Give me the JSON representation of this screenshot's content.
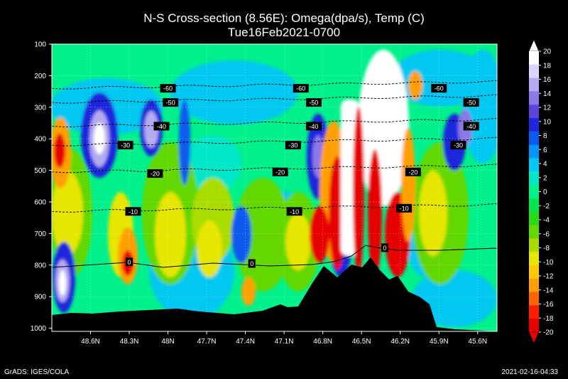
{
  "chart_data": {
    "type": "heatmap",
    "title": "N-S Cross-section (8.56E): Omega(dpa/s), Temp (C)",
    "subtitle": "Tue16Feb2021-0700",
    "x_ticks": [
      "48.6N",
      "48.3N",
      "48N",
      "47.7N",
      "47.4N",
      "47.1N",
      "46.8N",
      "46.5N",
      "46.2N",
      "45.9N",
      "45.6N"
    ],
    "y_ticks": [
      "100",
      "200",
      "300",
      "400",
      "500",
      "600",
      "700",
      "800",
      "900",
      "1000"
    ],
    "xlim": [
      48.9,
      45.45
    ],
    "ylim": [
      100,
      1010
    ],
    "colorbar": {
      "levels": [
        "20",
        "18",
        "16",
        "14",
        "12",
        "10",
        "8",
        "6",
        "4",
        "2",
        "0",
        "-2",
        "-4",
        "-6",
        "-8",
        "-10",
        "-12",
        "-14",
        "-16",
        "-18",
        "-20"
      ],
      "colors": [
        "#ffffff",
        "#dcd6ff",
        "#b4aaf0",
        "#8c78e6",
        "#5a46dc",
        "#1e28dc",
        "#0a5af0",
        "#0096ff",
        "#00c8f0",
        "#00e6c8",
        "#00f08c",
        "#00e650",
        "#28dc14",
        "#64d700",
        "#aadc00",
        "#e6e600",
        "#ffc800",
        "#ffa000",
        "#ff6400",
        "#ff1e00",
        "#e60000"
      ]
    },
    "contour_labels": [
      {
        "label": "-60",
        "lat": 48.0,
        "p": 240
      },
      {
        "label": "-60",
        "lat": 46.97,
        "p": 240
      },
      {
        "label": "-60",
        "lat": 45.9,
        "p": 240
      },
      {
        "label": "-50",
        "lat": 47.98,
        "p": 285
      },
      {
        "label": "-50",
        "lat": 46.87,
        "p": 285
      },
      {
        "label": "-50",
        "lat": 45.65,
        "p": 285
      },
      {
        "label": "-40",
        "lat": 48.05,
        "p": 360
      },
      {
        "label": "-40",
        "lat": 46.87,
        "p": 360
      },
      {
        "label": "-40",
        "lat": 45.65,
        "p": 360
      },
      {
        "label": "-30",
        "lat": 48.33,
        "p": 420
      },
      {
        "label": "-30",
        "lat": 47.03,
        "p": 420
      },
      {
        "label": "-30",
        "lat": 45.75,
        "p": 420
      },
      {
        "label": "-20",
        "lat": 48.1,
        "p": 510
      },
      {
        "label": "-20",
        "lat": 47.13,
        "p": 505
      },
      {
        "label": "-20",
        "lat": 46.1,
        "p": 505
      },
      {
        "label": "-10",
        "lat": 48.27,
        "p": 630
      },
      {
        "label": "-10",
        "lat": 47.02,
        "p": 630
      },
      {
        "label": "-10",
        "lat": 46.17,
        "p": 620
      },
      {
        "label": "0",
        "lat": 48.3,
        "p": 790
      },
      {
        "label": "0",
        "lat": 47.35,
        "p": 795
      },
      {
        "label": "0",
        "lat": 46.32,
        "p": 745
      }
    ]
  },
  "footer": {
    "left": "GrADS: IGES/COLA",
    "right": "2021-02-16-04:33"
  }
}
